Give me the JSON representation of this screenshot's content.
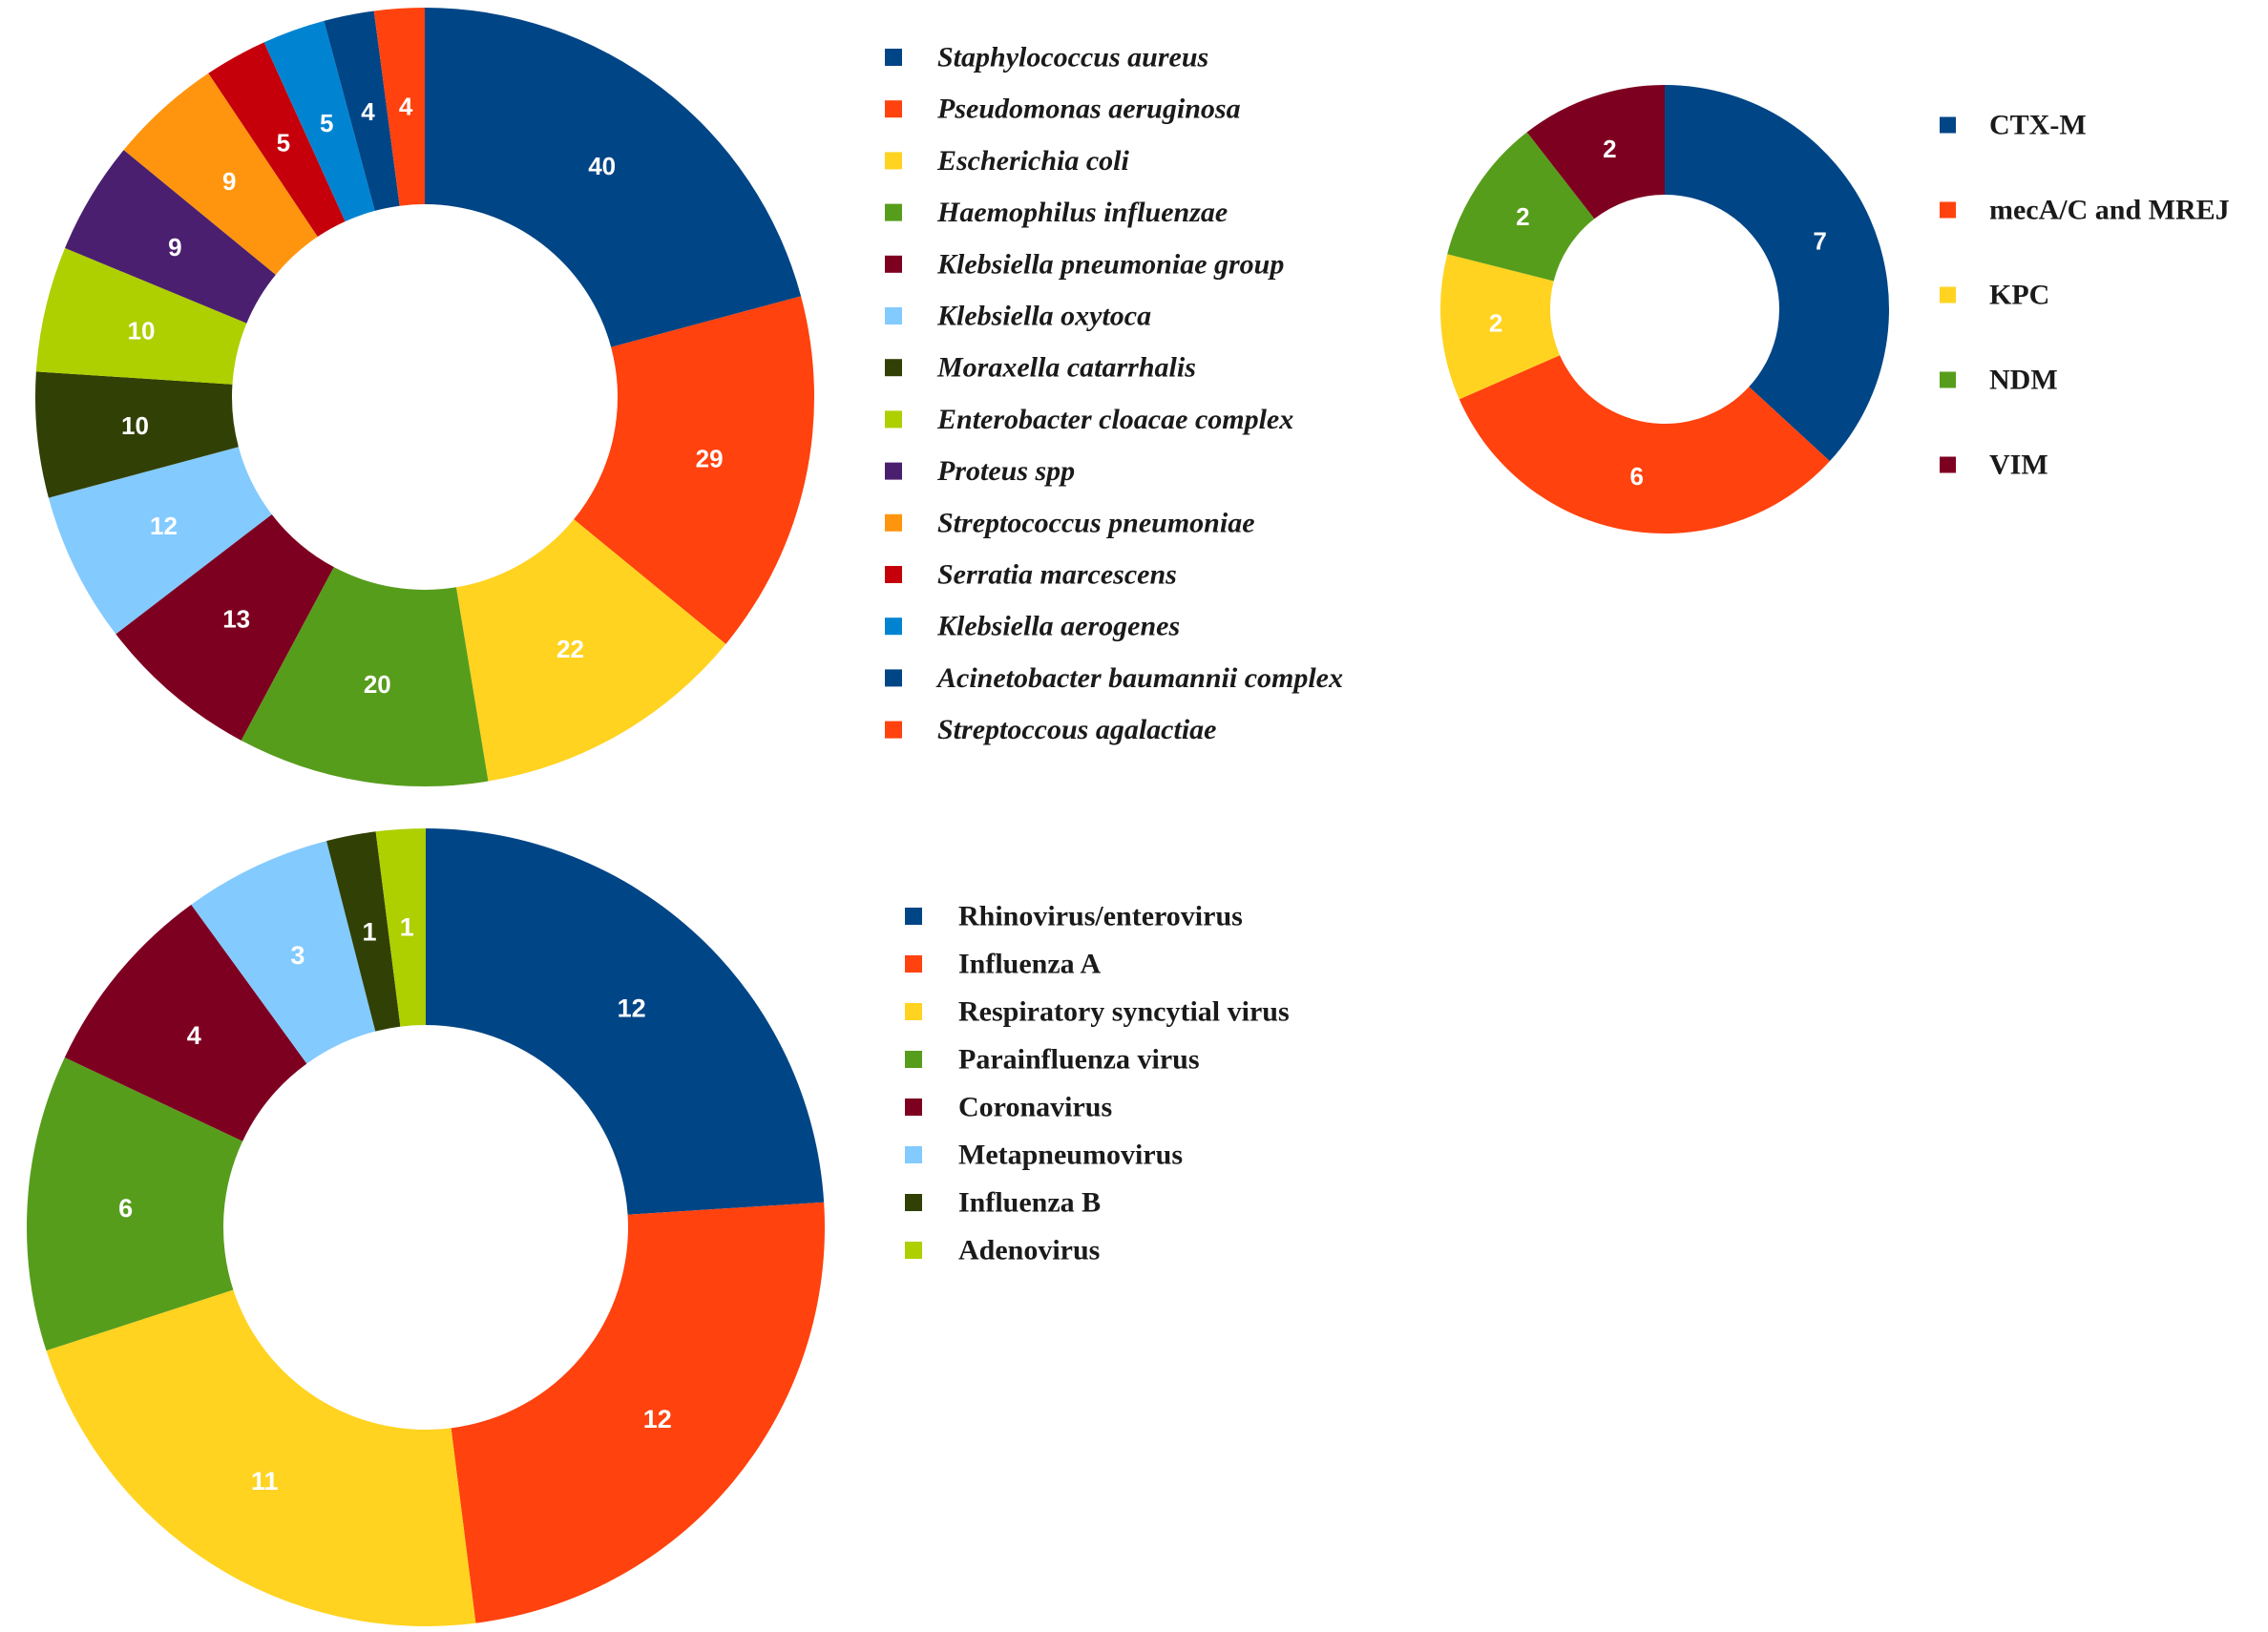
{
  "chart_data": [
    {
      "type": "pie",
      "variant": "donut",
      "title": "",
      "legend_position": "right",
      "legend_italic": true,
      "categories": [
        "Staphylococcus aureus",
        "Pseudomonas aeruginosa",
        "Escherichia coli",
        "Haemophilus influenzae",
        "Klebsiella pneumoniae group",
        "Klebsiella oxytoca",
        "Moraxella catarrhalis",
        "Enterobacter cloacae complex",
        "Proteus spp",
        "Streptococcus pneumoniae",
        "Serratia marcescens",
        "Klebsiella aerogenes",
        "Acinetobacter baumannii complex",
        "Streptoccous agalactiae"
      ],
      "values": [
        40,
        29,
        22,
        20,
        13,
        12,
        10,
        10,
        9,
        9,
        5,
        5,
        4,
        4
      ],
      "colors": [
        "#004586",
        "#ff420e",
        "#ffd320",
        "#579d1c",
        "#7e0021",
        "#83caff",
        "#314004",
        "#aecf00",
        "#4b1f6f",
        "#ff950e",
        "#c5000b",
        "#0084d1",
        "#004586",
        "#ff420e"
      ]
    },
    {
      "type": "pie",
      "variant": "donut",
      "title": "",
      "legend_position": "right",
      "legend_italic": false,
      "categories": [
        "CTX-M",
        "mecA/C and MREJ",
        "KPC",
        "NDM",
        "VIM"
      ],
      "values": [
        7,
        6,
        2,
        2,
        2
      ],
      "colors": [
        "#004586",
        "#ff420e",
        "#ffd320",
        "#579d1c",
        "#7e0021"
      ]
    },
    {
      "type": "pie",
      "variant": "donut",
      "title": "",
      "legend_position": "right",
      "legend_italic": false,
      "categories": [
        "Rhinovirus/enterovirus",
        "Influenza A",
        "Respiratory syncytial virus",
        "Parainfluenza virus",
        "Coronavirus",
        "Metapneumovirus",
        "Influenza B",
        "Adenovirus"
      ],
      "values": [
        12,
        12,
        11,
        6,
        4,
        3,
        1,
        1
      ],
      "colors": [
        "#004586",
        "#ff420e",
        "#ffd320",
        "#579d1c",
        "#7e0021",
        "#83caff",
        "#314004",
        "#aecf00"
      ]
    }
  ]
}
